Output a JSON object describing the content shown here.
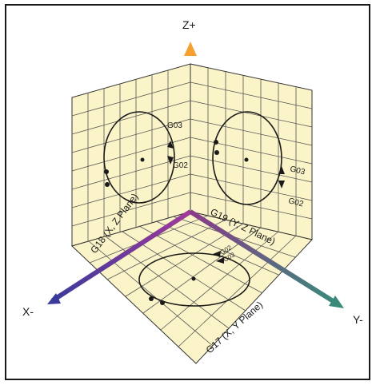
{
  "diagram": {
    "axes": {
      "z_positive": "Z+",
      "x_negative": "X-",
      "y_negative": "Y-"
    },
    "planes": {
      "xz": "G18 (X, Z Plane)",
      "yz": "G19 (Y, Z Plane)",
      "xy": "G17 (X, Y Plane)"
    },
    "arc_labels": {
      "ccw": "G03",
      "cw": "G02"
    },
    "colors": {
      "plane_fill": "#fbf4c8",
      "grid_line": "#555555",
      "z_axis": "#f08a2a",
      "x_axis": "#4a3a9a",
      "y_axis": "#3e7a78"
    }
  }
}
